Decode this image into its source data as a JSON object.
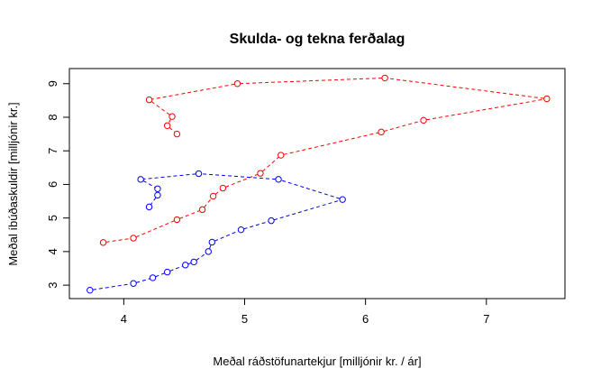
{
  "chart_data": {
    "type": "line",
    "title": "Skulda- og tekna ferðalag",
    "xlabel": "Meðal ráðstöfunartekjur [milljónir kr. / ár]",
    "ylabel": "Meðal íbúðaskuldir [milljónir kr.]",
    "xlim": [
      3.55,
      7.65
    ],
    "ylim": [
      2.6,
      9.45
    ],
    "xticks": [
      4,
      5,
      6,
      7
    ],
    "yticks": [
      3,
      4,
      5,
      6,
      7,
      8,
      9
    ],
    "grid": false,
    "legend": "none",
    "series": [
      {
        "color": "#ff0000",
        "marker": "open-circle",
        "line": "dashed",
        "x": [
          3.83,
          4.08,
          4.44,
          4.65,
          4.74,
          4.82,
          5.13,
          5.3,
          6.13,
          6.48,
          7.5,
          6.16,
          4.94,
          4.21,
          4.4,
          4.36,
          4.44
        ],
        "y": [
          4.27,
          4.4,
          4.95,
          5.25,
          5.65,
          5.89,
          6.33,
          6.87,
          7.56,
          7.91,
          8.55,
          9.17,
          9.0,
          8.52,
          8.02,
          7.75,
          7.5
        ]
      },
      {
        "color": "#0000ff",
        "marker": "open-circle",
        "line": "dashed",
        "x": [
          3.72,
          4.08,
          4.24,
          4.36,
          4.51,
          4.58,
          4.7,
          4.73,
          4.97,
          5.22,
          5.81,
          5.28,
          4.62,
          4.14,
          4.28,
          4.28,
          4.21
        ],
        "y": [
          2.85,
          3.05,
          3.22,
          3.39,
          3.6,
          3.69,
          4.0,
          4.28,
          4.65,
          4.92,
          5.55,
          6.15,
          6.32,
          6.15,
          5.87,
          5.68,
          5.33
        ]
      }
    ]
  }
}
